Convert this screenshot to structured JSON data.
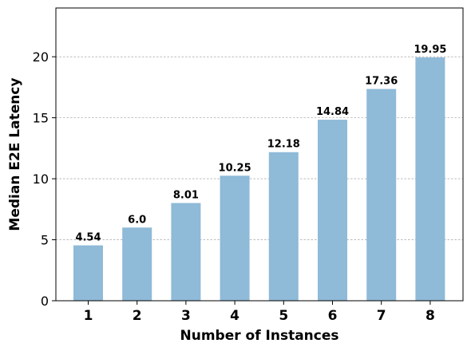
{
  "chart_data": {
    "type": "bar",
    "categories": [
      "1",
      "2",
      "3",
      "4",
      "5",
      "6",
      "7",
      "8"
    ],
    "values": [
      4.54,
      6.0,
      8.01,
      10.25,
      12.18,
      14.84,
      17.36,
      19.95
    ],
    "data_labels": [
      "4.54",
      "6.0",
      "8.01",
      "10.25",
      "12.18",
      "14.84",
      "17.36",
      "19.95"
    ],
    "title": "",
    "xlabel": "Number of Instances",
    "ylabel": "Median E2E Latency",
    "ylim": [
      0,
      24
    ],
    "yticks": [
      0,
      5,
      10,
      15,
      20
    ],
    "grid": "horizontal dashed",
    "bar_color": "#8fbad8"
  }
}
